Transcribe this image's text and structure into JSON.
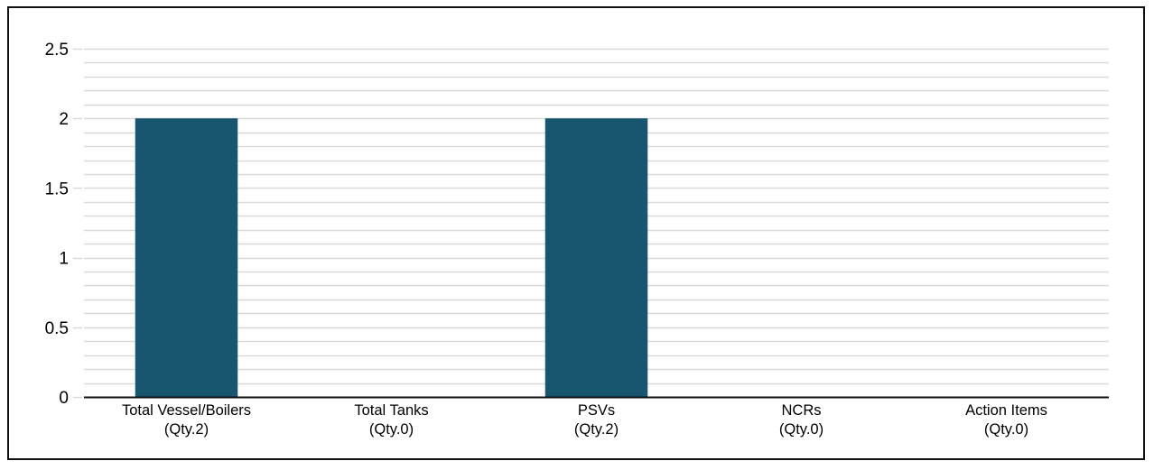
{
  "chart_data": {
    "type": "bar",
    "title": "",
    "xlabel": "",
    "ylabel": "",
    "ylim": [
      0,
      2.5
    ],
    "yticks": [
      "0",
      "0.5",
      "1",
      "1.5",
      "2",
      "2.5"
    ],
    "ytick_values": [
      0,
      0.5,
      1,
      1.5,
      2,
      2.5
    ],
    "minor_grid_step": 0.1,
    "grid": true,
    "legend": "none",
    "categories": [
      [
        "Total Vessel/Boilers",
        "(Qty.2)"
      ],
      [
        "Total Tanks",
        "(Qty.0)"
      ],
      [
        "PSVs",
        "(Qty.2)"
      ],
      [
        "NCRs",
        "(Qty.0)"
      ],
      [
        "Action Items",
        "(Qty.0)"
      ]
    ],
    "values": [
      2,
      0,
      2,
      0,
      0
    ],
    "bar_color": "#18566f",
    "grid_color": "#d9d9d9",
    "axis_color": "#111111"
  }
}
